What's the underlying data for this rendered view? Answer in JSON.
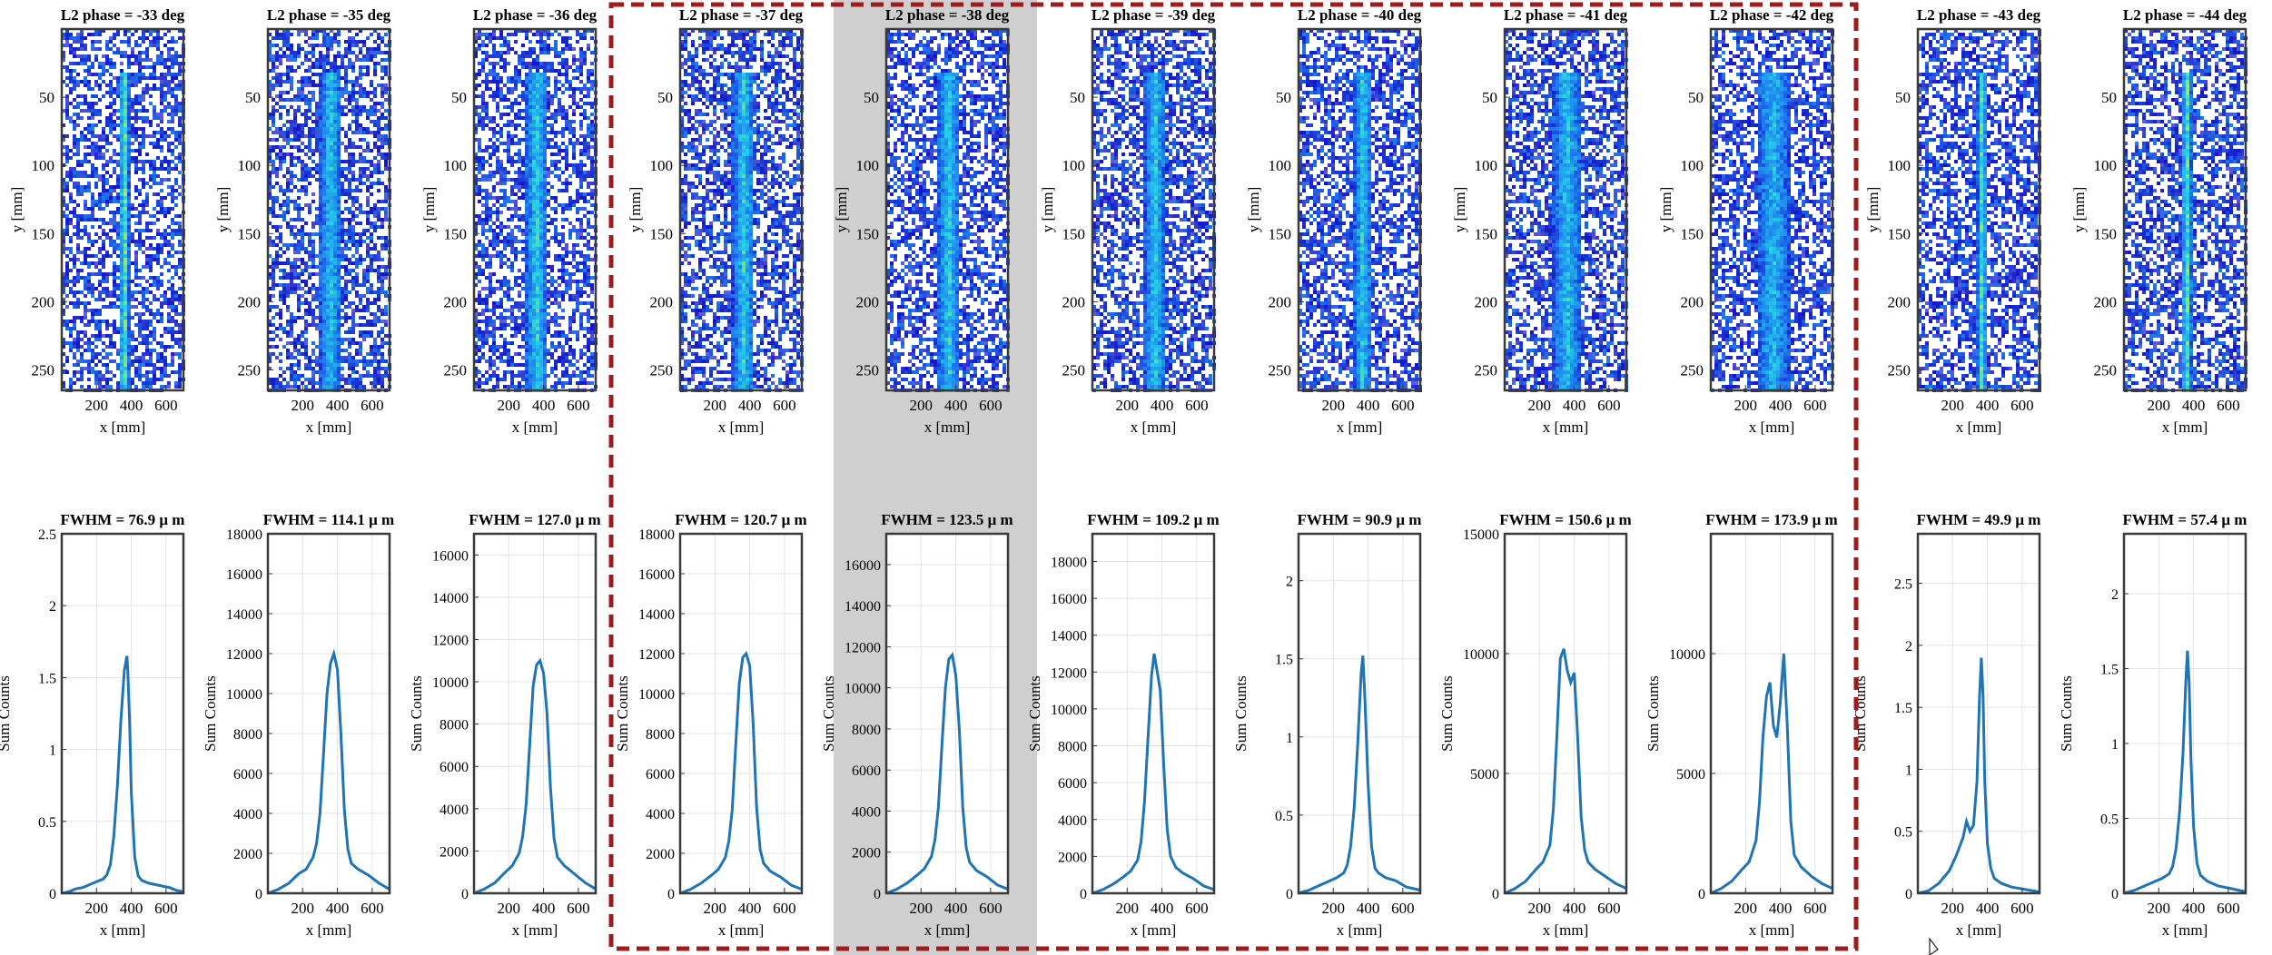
{
  "figure": {
    "highlight_color": "#a01c1c",
    "shade_color": "#cfcfcf",
    "line_color": "#1f74b4",
    "colormap": [
      "#ffffff",
      "#1515c8",
      "#1f7cf0",
      "#24d3e6",
      "#b4f050"
    ]
  },
  "chart_data": [
    {
      "type": "heatmap",
      "title": "L2 phase = -33 deg",
      "xlabel": "x [mm]",
      "ylabel": "y [mm]",
      "xticks": [
        "200",
        "400",
        "600"
      ],
      "yticks": [
        "50",
        "100",
        "150",
        "200",
        "250"
      ],
      "xlim": [
        0,
        700
      ],
      "ylim": [
        0,
        265
      ],
      "beam": {
        "center": 350,
        "width": 60,
        "peak": 0.85
      },
      "noise": 0.55
    },
    {
      "type": "heatmap",
      "title": "L2 phase = -35 deg",
      "xlabel": "x [mm]",
      "ylabel": "y [mm]",
      "xticks": [
        "200",
        "400",
        "600"
      ],
      "yticks": [
        "50",
        "100",
        "150",
        "200",
        "250"
      ],
      "xlim": [
        0,
        700
      ],
      "ylim": [
        0,
        265
      ],
      "beam": {
        "center": 350,
        "width": 120,
        "peak": 0.55
      },
      "noise": 0.55
    },
    {
      "type": "heatmap",
      "title": "L2 phase = -36 deg",
      "xlabel": "x [mm]",
      "ylabel": "y [mm]",
      "xticks": [
        "200",
        "400",
        "600"
      ],
      "yticks": [
        "50",
        "100",
        "150",
        "200",
        "250"
      ],
      "xlim": [
        0,
        700
      ],
      "ylim": [
        0,
        265
      ],
      "beam": {
        "center": 350,
        "width": 130,
        "peak": 0.6
      },
      "noise": 0.55
    },
    {
      "type": "heatmap",
      "title": "L2 phase = -37 deg",
      "xlabel": "x [mm]",
      "ylabel": "y [mm]",
      "xticks": [
        "200",
        "400",
        "600"
      ],
      "yticks": [
        "50",
        "100",
        "150",
        "200",
        "250"
      ],
      "xlim": [
        0,
        700
      ],
      "ylim": [
        0,
        265
      ],
      "beam": {
        "center": 355,
        "width": 125,
        "peak": 0.6
      },
      "noise": 0.55
    },
    {
      "type": "heatmap",
      "title": "L2 phase = -38 deg",
      "xlabel": "x [mm]",
      "ylabel": "y [mm]",
      "xticks": [
        "200",
        "400",
        "600"
      ],
      "yticks": [
        "50",
        "100",
        "150",
        "200",
        "250"
      ],
      "xlim": [
        0,
        700
      ],
      "ylim": [
        0,
        265
      ],
      "beam": {
        "center": 350,
        "width": 130,
        "peak": 0.6
      },
      "noise": 0.55
    },
    {
      "type": "heatmap",
      "title": "L2 phase = -39 deg",
      "xlabel": "x [mm]",
      "ylabel": "y [mm]",
      "xticks": [
        "200",
        "400",
        "600"
      ],
      "yticks": [
        "50",
        "100",
        "150",
        "200",
        "250"
      ],
      "xlim": [
        0,
        700
      ],
      "ylim": [
        0,
        265
      ],
      "beam": {
        "center": 350,
        "width": 115,
        "peak": 0.6
      },
      "noise": 0.55
    },
    {
      "type": "heatmap",
      "title": "L2 phase = -40 deg",
      "xlabel": "x [mm]",
      "ylabel": "y [mm]",
      "xticks": [
        "200",
        "400",
        "600"
      ],
      "yticks": [
        "50",
        "100",
        "150",
        "200",
        "250"
      ],
      "xlim": [
        0,
        700
      ],
      "ylim": [
        0,
        265
      ],
      "beam": {
        "center": 360,
        "width": 100,
        "peak": 0.6
      },
      "noise": 0.55
    },
    {
      "type": "heatmap",
      "title": "L2 phase = -41 deg",
      "xlabel": "x [mm]",
      "ylabel": "y [mm]",
      "xticks": [
        "200",
        "400",
        "600"
      ],
      "yticks": [
        "50",
        "100",
        "150",
        "200",
        "250"
      ],
      "xlim": [
        0,
        700
      ],
      "ylim": [
        0,
        265
      ],
      "beam": {
        "center": 350,
        "width": 160,
        "peak": 0.55
      },
      "noise": 0.55
    },
    {
      "type": "heatmap",
      "title": "L2 phase = -42 deg",
      "xlabel": "x [mm]",
      "ylabel": "y [mm]",
      "xticks": [
        "200",
        "400",
        "600"
      ],
      "yticks": [
        "50",
        "100",
        "150",
        "200",
        "250"
      ],
      "xlim": [
        0,
        700
      ],
      "ylim": [
        0,
        265
      ],
      "beam": {
        "center": 350,
        "width": 180,
        "peak": 0.5
      },
      "noise": 0.55
    },
    {
      "type": "heatmap",
      "title": "L2 phase = -43 deg",
      "xlabel": "x [mm]",
      "ylabel": "y [mm]",
      "xticks": [
        "200",
        "400",
        "600"
      ],
      "yticks": [
        "50",
        "100",
        "150",
        "200",
        "250"
      ],
      "xlim": [
        0,
        700
      ],
      "ylim": [
        0,
        265
      ],
      "beam": {
        "center": 360,
        "width": 55,
        "peak": 0.85
      },
      "noise": 0.55
    },
    {
      "type": "heatmap",
      "title": "L2 phase = -44 deg",
      "xlabel": "x [mm]",
      "ylabel": "y [mm]",
      "xticks": [
        "200",
        "400",
        "600"
      ],
      "yticks": [
        "50",
        "100",
        "150",
        "200",
        "250"
      ],
      "xlim": [
        0,
        700
      ],
      "ylim": [
        0,
        265
      ],
      "beam": {
        "center": 350,
        "width": 60,
        "peak": 0.85
      },
      "noise": 0.55
    },
    {
      "type": "line",
      "title": "FWHM = 76.9 μ m",
      "xlabel": "x [mm]",
      "ylabel": "Sum Counts",
      "xticks": [
        "200",
        "400",
        "600"
      ],
      "xlim": [
        0,
        700
      ],
      "ylim": [
        0,
        2.5
      ],
      "yticks": [
        "0",
        "0.5",
        "1",
        "1.5",
        "2",
        "2.5"
      ],
      "x": [
        0,
        40,
        80,
        120,
        160,
        200,
        240,
        260,
        280,
        300,
        320,
        340,
        360,
        375,
        380,
        390,
        400,
        420,
        440,
        460,
        500,
        540,
        580,
        620,
        660,
        700
      ],
      "y": [
        0,
        0.01,
        0.03,
        0.04,
        0.06,
        0.08,
        0.1,
        0.13,
        0.2,
        0.4,
        0.75,
        1.2,
        1.55,
        1.65,
        1.55,
        1.2,
        0.7,
        0.25,
        0.12,
        0.09,
        0.07,
        0.06,
        0.05,
        0.04,
        0.02,
        0.01
      ]
    },
    {
      "type": "line",
      "title": "FWHM = 114.1 μ m",
      "xlabel": "x [mm]",
      "ylabel": "Sum Counts",
      "xticks": [
        "200",
        "400",
        "600"
      ],
      "xlim": [
        0,
        700
      ],
      "ylim": [
        0,
        18000
      ],
      "yticks": [
        "0",
        "2000",
        "4000",
        "6000",
        "8000",
        "10000",
        "12000",
        "14000",
        "16000",
        "18000"
      ],
      "x": [
        0,
        60,
        120,
        180,
        220,
        260,
        280,
        300,
        320,
        340,
        360,
        380,
        400,
        420,
        440,
        460,
        480,
        520,
        580,
        640,
        700
      ],
      "y": [
        0,
        200,
        500,
        1000,
        1200,
        1800,
        2500,
        4000,
        7000,
        10000,
        11500,
        12000,
        11200,
        8000,
        4200,
        2200,
        1500,
        1200,
        900,
        500,
        200
      ]
    },
    {
      "type": "line",
      "title": "FWHM = 127.0 μ m",
      "xlabel": "x [mm]",
      "ylabel": "Sum Counts",
      "xticks": [
        "200",
        "400",
        "600"
      ],
      "xlim": [
        0,
        700
      ],
      "ylim": [
        0,
        17000
      ],
      "yticks": [
        "0",
        "2000",
        "4000",
        "6000",
        "8000",
        "10000",
        "12000",
        "14000",
        "16000"
      ],
      "x": [
        0,
        60,
        120,
        180,
        220,
        260,
        280,
        300,
        320,
        340,
        360,
        380,
        400,
        420,
        440,
        460,
        480,
        520,
        580,
        640,
        700
      ],
      "y": [
        0,
        200,
        500,
        1000,
        1300,
        1900,
        2700,
        4200,
        7000,
        9800,
        10800,
        11000,
        10400,
        8500,
        5000,
        2600,
        1700,
        1300,
        900,
        500,
        200
      ]
    },
    {
      "type": "line",
      "title": "FWHM = 120.7 μ m",
      "xlabel": "x [mm]",
      "ylabel": "Sum Counts",
      "xticks": [
        "200",
        "400",
        "600"
      ],
      "xlim": [
        0,
        700
      ],
      "ylim": [
        0,
        18000
      ],
      "yticks": [
        "0",
        "2000",
        "4000",
        "6000",
        "8000",
        "10000",
        "12000",
        "14000",
        "16000",
        "18000"
      ],
      "x": [
        0,
        60,
        120,
        180,
        220,
        260,
        280,
        300,
        320,
        340,
        360,
        380,
        400,
        420,
        440,
        460,
        480,
        520,
        580,
        640,
        700
      ],
      "y": [
        0,
        200,
        500,
        900,
        1200,
        1800,
        2600,
        4200,
        7500,
        10500,
        11800,
        12000,
        11400,
        8500,
        4300,
        2200,
        1500,
        1100,
        800,
        400,
        200
      ]
    },
    {
      "type": "line",
      "title": "FWHM = 123.5 μ m",
      "xlabel": "x [mm]",
      "ylabel": "Sum Counts",
      "xticks": [
        "200",
        "400",
        "600"
      ],
      "xlim": [
        0,
        700
      ],
      "ylim": [
        0,
        17500
      ],
      "yticks": [
        "0",
        "2000",
        "4000",
        "6000",
        "8000",
        "10000",
        "12000",
        "14000",
        "16000"
      ],
      "x": [
        0,
        60,
        120,
        180,
        220,
        260,
        280,
        300,
        320,
        340,
        360,
        380,
        400,
        420,
        440,
        460,
        480,
        520,
        580,
        640,
        700
      ],
      "y": [
        0,
        200,
        500,
        900,
        1200,
        1800,
        2600,
        4200,
        7200,
        10000,
        11400,
        11600,
        10600,
        8000,
        4200,
        2200,
        1500,
        1100,
        800,
        400,
        200
      ]
    },
    {
      "type": "line",
      "title": "FWHM = 109.2 μ m",
      "xlabel": "x [mm]",
      "ylabel": "Sum Counts",
      "xticks": [
        "200",
        "400",
        "600"
      ],
      "xlim": [
        0,
        700
      ],
      "ylim": [
        0,
        19500
      ],
      "yticks": [
        "0",
        "2000",
        "4000",
        "6000",
        "8000",
        "10000",
        "12000",
        "14000",
        "16000",
        "18000"
      ],
      "x": [
        0,
        60,
        120,
        180,
        220,
        260,
        280,
        300,
        320,
        340,
        355,
        370,
        390,
        410,
        430,
        450,
        480,
        520,
        580,
        640,
        700
      ],
      "y": [
        0,
        200,
        500,
        900,
        1200,
        1800,
        2800,
        5000,
        8500,
        11800,
        13000,
        12200,
        11000,
        7000,
        3500,
        2000,
        1400,
        1100,
        800,
        400,
        200
      ]
    },
    {
      "type": "line",
      "title": "FWHM = 90.9 μ m",
      "xlabel": "x [mm]",
      "ylabel": "Sum Counts",
      "xticks": [
        "200",
        "400",
        "600"
      ],
      "xlim": [
        0,
        700
      ],
      "ylim": [
        0,
        2.3
      ],
      "yticks": [
        "0",
        "0.5",
        "1",
        "1.5",
        "2"
      ],
      "x": [
        0,
        60,
        120,
        180,
        220,
        260,
        280,
        300,
        320,
        340,
        360,
        370,
        380,
        400,
        420,
        440,
        460,
        500,
        560,
        620,
        700
      ],
      "y": [
        0,
        0.02,
        0.05,
        0.08,
        0.1,
        0.13,
        0.18,
        0.3,
        0.55,
        0.95,
        1.4,
        1.52,
        1.3,
        0.7,
        0.3,
        0.16,
        0.13,
        0.1,
        0.08,
        0.04,
        0.02
      ]
    },
    {
      "type": "line",
      "title": "FWHM = 150.6 μ m",
      "xlabel": "x [mm]",
      "ylabel": "Sum Counts",
      "xticks": [
        "200",
        "400",
        "600"
      ],
      "xlim": [
        0,
        700
      ],
      "ylim": [
        0,
        15000
      ],
      "yticks": [
        "0",
        "5000",
        "10000",
        "15000"
      ],
      "x": [
        0,
        60,
        120,
        180,
        220,
        260,
        280,
        300,
        320,
        340,
        360,
        380,
        400,
        420,
        440,
        460,
        480,
        520,
        580,
        640,
        700
      ],
      "y": [
        0,
        200,
        500,
        1000,
        1300,
        2000,
        3500,
        6500,
        9800,
        10200,
        9300,
        8800,
        9200,
        6500,
        3200,
        1800,
        1300,
        1000,
        700,
        400,
        200
      ]
    },
    {
      "type": "line",
      "title": "FWHM = 173.9 μ m",
      "xlabel": "x [mm]",
      "ylabel": "Sum Counts",
      "xticks": [
        "200",
        "400",
        "600"
      ],
      "xlim": [
        0,
        700
      ],
      "ylim": [
        0,
        15000
      ],
      "yticks": [
        "0",
        "5000",
        "10000"
      ],
      "x": [
        0,
        60,
        120,
        180,
        220,
        260,
        280,
        300,
        320,
        340,
        360,
        380,
        400,
        420,
        440,
        460,
        480,
        520,
        580,
        640,
        700
      ],
      "y": [
        0,
        200,
        500,
        1000,
        1300,
        2200,
        3800,
        6500,
        8200,
        8800,
        7000,
        6500,
        8000,
        10000,
        7000,
        3000,
        1600,
        1100,
        700,
        400,
        200
      ]
    },
    {
      "type": "line",
      "title": "FWHM = 49.9 μ m",
      "xlabel": "x [mm]",
      "ylabel": "Sum Counts",
      "xticks": [
        "200",
        "400",
        "600"
      ],
      "xlim": [
        0,
        700
      ],
      "ylim": [
        0,
        2.9
      ],
      "yticks": [
        "0",
        "0.5",
        "1",
        "1.5",
        "2",
        "2.5"
      ],
      "x": [
        0,
        60,
        120,
        180,
        220,
        260,
        280,
        300,
        320,
        340,
        355,
        365,
        375,
        385,
        400,
        420,
        440,
        480,
        540,
        620,
        700
      ],
      "y": [
        0,
        0.02,
        0.08,
        0.18,
        0.3,
        0.45,
        0.58,
        0.5,
        0.55,
        0.9,
        1.6,
        1.9,
        1.6,
        0.9,
        0.4,
        0.2,
        0.12,
        0.08,
        0.05,
        0.03,
        0.01
      ]
    },
    {
      "type": "line",
      "title": "FWHM = 57.4 μ m",
      "xlabel": "x [mm]",
      "ylabel": "Sum Counts",
      "xticks": [
        "200",
        "400",
        "600"
      ],
      "xlim": [
        0,
        700
      ],
      "ylim": [
        0,
        2.4
      ],
      "yticks": [
        "0",
        "0.5",
        "1",
        "1.5",
        "2"
      ],
      "x": [
        0,
        60,
        120,
        180,
        220,
        260,
        280,
        300,
        320,
        340,
        355,
        365,
        375,
        385,
        400,
        420,
        440,
        480,
        540,
        620,
        700
      ],
      "y": [
        0,
        0.02,
        0.05,
        0.08,
        0.1,
        0.13,
        0.18,
        0.3,
        0.55,
        0.95,
        1.4,
        1.62,
        1.4,
        0.9,
        0.45,
        0.2,
        0.12,
        0.08,
        0.05,
        0.03,
        0.01
      ]
    }
  ]
}
